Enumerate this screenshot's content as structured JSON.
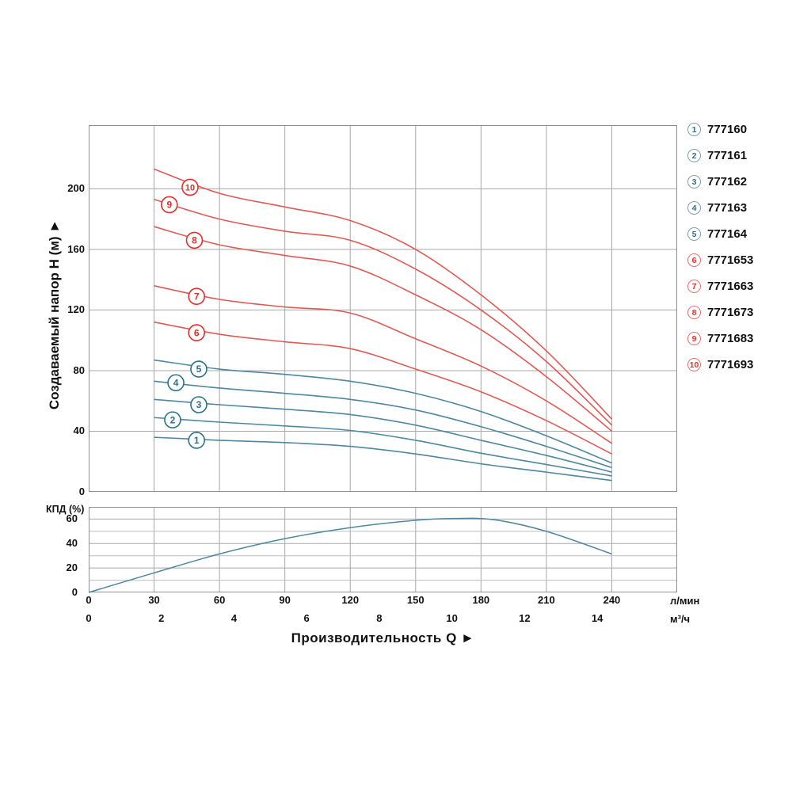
{
  "axes": {
    "head_title": "Создаваемый напор H (м) ►",
    "flow_title": "Производительность Q ►",
    "eff_title": "КПД (%)",
    "unit_lmin": "л/мин",
    "unit_m3h": "м³/ч"
  },
  "colors": {
    "blue_curve": "#4d87a0",
    "blue_ring": "#7fa0ad",
    "blue_text": "#2d7089",
    "red_curve": "#e05a54",
    "red_ring": "#e4736d",
    "red_text": "#e0302b",
    "grid": "#a8a8a8",
    "grid_minor": "#bdbdbd",
    "border": "#8f8f8f",
    "text": "#111111"
  },
  "legend": {
    "items": [
      {
        "num": "1",
        "model": "777160",
        "group": "blue"
      },
      {
        "num": "2",
        "model": "777161",
        "group": "blue"
      },
      {
        "num": "3",
        "model": "777162",
        "group": "blue"
      },
      {
        "num": "4",
        "model": "777163",
        "group": "blue"
      },
      {
        "num": "5",
        "model": "777164",
        "group": "blue"
      },
      {
        "num": "6",
        "model": "7771653",
        "group": "red"
      },
      {
        "num": "7",
        "model": "7771663",
        "group": "red"
      },
      {
        "num": "8",
        "model": "7771673",
        "group": "red"
      },
      {
        "num": "9",
        "model": "7771683",
        "group": "red"
      },
      {
        "num": "10",
        "model": "7771693",
        "group": "red"
      }
    ]
  },
  "chart_data": [
    {
      "type": "line",
      "title": "",
      "xlabel": "Производительность Q",
      "ylabel": "Создаваемый напор H (м)",
      "x_units": [
        "л/мин",
        "м³/ч"
      ],
      "xlim": [
        0,
        270
      ],
      "ylim": [
        0,
        242
      ],
      "x_ticks_lmin": [
        0,
        30,
        60,
        90,
        120,
        150,
        180,
        210,
        240
      ],
      "x_ticks_m3h": [
        0,
        2,
        4,
        6,
        8,
        10,
        12,
        14
      ],
      "y_ticks": [
        0,
        40,
        80,
        120,
        160,
        200
      ],
      "grid": "on",
      "legend_position": "right",
      "series": [
        {
          "label": "1",
          "name": "777160",
          "group": "blue",
          "points": [
            [
              30,
              36
            ],
            [
              60,
              34
            ],
            [
              90,
              32.5
            ],
            [
              120,
              30
            ],
            [
              150,
              25
            ],
            [
              180,
              18.5
            ],
            [
              210,
              13
            ],
            [
              240,
              7.5
            ]
          ],
          "marker": [
            49.5,
            34
          ]
        },
        {
          "label": "2",
          "name": "777161",
          "group": "blue",
          "points": [
            [
              30,
              49
            ],
            [
              60,
              46
            ],
            [
              90,
              43.5
            ],
            [
              120,
              40.5
            ],
            [
              150,
              34
            ],
            [
              180,
              25.5
            ],
            [
              210,
              18
            ],
            [
              240,
              10.5
            ]
          ],
          "marker": [
            38.5,
            47.5
          ]
        },
        {
          "label": "3",
          "name": "777162",
          "group": "blue",
          "points": [
            [
              30,
              61
            ],
            [
              60,
              57.5
            ],
            [
              90,
              54.5
            ],
            [
              120,
              51
            ],
            [
              150,
              44
            ],
            [
              180,
              34
            ],
            [
              210,
              24
            ],
            [
              240,
              13
            ]
          ],
          "marker": [
            50.5,
            57.5
          ]
        },
        {
          "label": "4",
          "name": "777163",
          "group": "blue",
          "points": [
            [
              30,
              73
            ],
            [
              60,
              68.5
            ],
            [
              90,
              65
            ],
            [
              120,
              61
            ],
            [
              150,
              54
            ],
            [
              180,
              43
            ],
            [
              210,
              30
            ],
            [
              240,
              16
            ]
          ],
          "marker": [
            40,
            72
          ]
        },
        {
          "label": "5",
          "name": "777164",
          "group": "blue",
          "points": [
            [
              30,
              87
            ],
            [
              60,
              81
            ],
            [
              90,
              77.5
            ],
            [
              120,
              73
            ],
            [
              150,
              65
            ],
            [
              180,
              53
            ],
            [
              210,
              37
            ],
            [
              240,
              19
            ]
          ],
          "marker": [
            50.5,
            81
          ]
        },
        {
          "label": "6",
          "name": "7771653",
          "group": "red",
          "points": [
            [
              30,
              112
            ],
            [
              60,
              104
            ],
            [
              90,
              99
            ],
            [
              120,
              94.5
            ],
            [
              150,
              81
            ],
            [
              180,
              66
            ],
            [
              210,
              47
            ],
            [
              240,
              25
            ]
          ],
          "marker": [
            49.5,
            105
          ]
        },
        {
          "label": "7",
          "name": "7771663",
          "group": "red",
          "points": [
            [
              30,
              136
            ],
            [
              60,
              127
            ],
            [
              90,
              122
            ],
            [
              120,
              118
            ],
            [
              150,
              101
            ],
            [
              180,
              83
            ],
            [
              210,
              60
            ],
            [
              240,
              32
            ]
          ],
          "marker": [
            49.5,
            129
          ]
        },
        {
          "label": "8",
          "name": "7771673",
          "group": "red",
          "points": [
            [
              30,
              175
            ],
            [
              60,
              163
            ],
            [
              90,
              156
            ],
            [
              120,
              149
            ],
            [
              150,
              130
            ],
            [
              180,
              107
            ],
            [
              210,
              76
            ],
            [
              240,
              40
            ]
          ],
          "marker": [
            48.5,
            166
          ]
        },
        {
          "label": "9",
          "name": "7771683",
          "group": "red",
          "points": [
            [
              30,
              193
            ],
            [
              60,
              180
            ],
            [
              90,
              172
            ],
            [
              120,
              166
            ],
            [
              150,
              147
            ],
            [
              180,
              120
            ],
            [
              210,
              86
            ],
            [
              240,
              44
            ]
          ],
          "marker": [
            37,
            189.5
          ]
        },
        {
          "label": "10",
          "name": "7771693",
          "group": "red",
          "points": [
            [
              30,
              213
            ],
            [
              60,
              197
            ],
            [
              90,
              188
            ],
            [
              120,
              179
            ],
            [
              150,
              160
            ],
            [
              180,
              130
            ],
            [
              210,
              93
            ],
            [
              240,
              48
            ]
          ],
          "marker": [
            46.5,
            201
          ]
        }
      ]
    },
    {
      "type": "line",
      "title": "",
      "ylabel": "КПД (%)",
      "xlim": [
        0,
        270
      ],
      "ylim": [
        0,
        70
      ],
      "y_ticks": [
        0,
        20,
        40,
        60
      ],
      "y_minor_step": 10,
      "grid": "on",
      "series": [
        {
          "label": "КПД",
          "name": "КПД",
          "group": "blue",
          "points": [
            [
              0,
              0
            ],
            [
              30,
              16
            ],
            [
              60,
              31.5
            ],
            [
              90,
              44
            ],
            [
              120,
              53
            ],
            [
              150,
              59
            ],
            [
              168,
              60.5
            ],
            [
              186,
              59.5
            ],
            [
              210,
              50
            ],
            [
              240,
              31.5
            ]
          ]
        }
      ]
    }
  ]
}
